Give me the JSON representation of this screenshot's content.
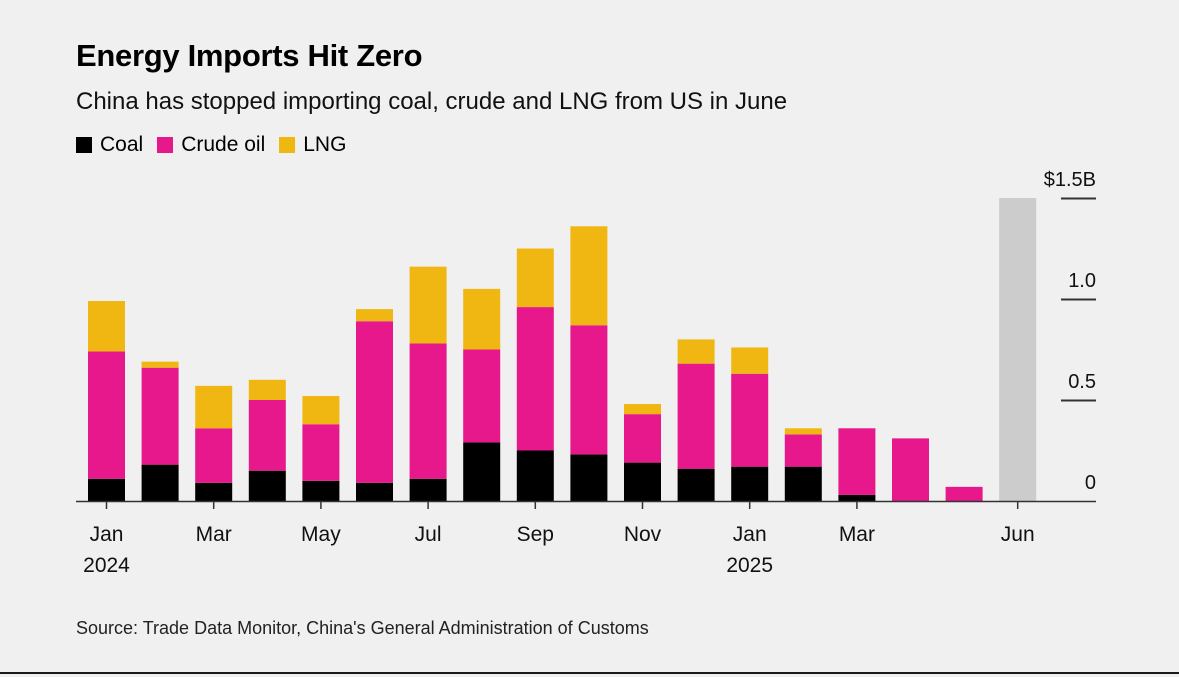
{
  "colors": {
    "coal": "#000000",
    "crude_oil": "#e6188c",
    "lng": "#f0b713",
    "highlight": "#cccccc",
    "axis": "#333333"
  },
  "source": "Source: Trade Data Monitor, China's General Administration of Customs",
  "chart_data": {
    "type": "bar",
    "stacked": true,
    "title": "Energy Imports Hit Zero",
    "subtitle": "China has stopped importing coal, crude and LNG from US in June",
    "legend_position": "top-left",
    "grid": false,
    "categories": [
      "Jan 2024",
      "Feb 2024",
      "Mar 2024",
      "Apr 2024",
      "May 2024",
      "Jun 2024",
      "Jul 2024",
      "Aug 2024",
      "Sep 2024",
      "Oct 2024",
      "Nov 2024",
      "Dec 2024",
      "Jan 2025",
      "Feb 2025",
      "Mar 2025",
      "Apr 2025",
      "May 2025",
      "Jun 2025"
    ],
    "x_tick_labels": [
      {
        "index": 0,
        "line1": "Jan",
        "line2": "2024"
      },
      {
        "index": 2,
        "line1": "Mar",
        "line2": ""
      },
      {
        "index": 4,
        "line1": "May",
        "line2": ""
      },
      {
        "index": 6,
        "line1": "Jul",
        "line2": ""
      },
      {
        "index": 8,
        "line1": "Sep",
        "line2": ""
      },
      {
        "index": 10,
        "line1": "Nov",
        "line2": ""
      },
      {
        "index": 12,
        "line1": "Jan",
        "line2": "2025"
      },
      {
        "index": 14,
        "line1": "Mar",
        "line2": ""
      },
      {
        "index": 17,
        "line1": "Jun",
        "line2": ""
      }
    ],
    "series": [
      {
        "name": "Coal",
        "key": "coal",
        "values": [
          0.11,
          0.18,
          0.09,
          0.15,
          0.1,
          0.09,
          0.11,
          0.29,
          0.25,
          0.23,
          0.19,
          0.16,
          0.17,
          0.17,
          0.03,
          0.0,
          0.0,
          0.0
        ]
      },
      {
        "name": "Crude oil",
        "key": "crude_oil",
        "values": [
          0.63,
          0.48,
          0.27,
          0.35,
          0.28,
          0.8,
          0.67,
          0.46,
          0.71,
          0.64,
          0.24,
          0.52,
          0.46,
          0.16,
          0.33,
          0.31,
          0.07,
          0.0
        ]
      },
      {
        "name": "LNG",
        "key": "lng",
        "values": [
          0.25,
          0.03,
          0.21,
          0.1,
          0.14,
          0.06,
          0.38,
          0.3,
          0.29,
          0.49,
          0.05,
          0.12,
          0.13,
          0.03,
          0.0,
          0.0,
          0.0,
          0.0
        ]
      }
    ],
    "highlight": {
      "index": 17,
      "from": 0,
      "to": 1.5
    },
    "ylim": [
      0,
      1.5
    ],
    "y_ticks": [
      {
        "value": 0,
        "label": "0"
      },
      {
        "value": 0.5,
        "label": "0.5"
      },
      {
        "value": 1.0,
        "label": "1.0"
      },
      {
        "value": 1.5,
        "label": "$1.5B"
      }
    ],
    "ylabel": "",
    "xlabel": ""
  }
}
